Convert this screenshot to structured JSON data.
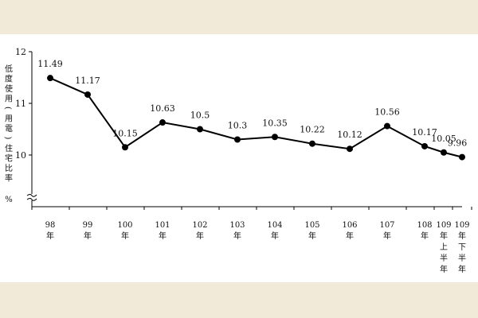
{
  "chart_data": {
    "type": "line",
    "ylabel_chars": [
      "低",
      "度",
      "使",
      "用",
      "(",
      "用",
      "電",
      ")",
      "住",
      "宅",
      "比",
      "率"
    ],
    "yunit": "%",
    "ylim": [
      9,
      12
    ],
    "yticks": [
      10,
      11,
      12
    ],
    "y_axis_break": true,
    "grid": false,
    "legend": "none",
    "categories": [
      [
        "98",
        "年"
      ],
      [
        "99",
        "年"
      ],
      [
        "100",
        "年"
      ],
      [
        "101",
        "年"
      ],
      [
        "102",
        "年"
      ],
      [
        "103",
        "年"
      ],
      [
        "104",
        "年"
      ],
      [
        "105",
        "年"
      ],
      [
        "106",
        "年"
      ],
      [
        "107",
        "年"
      ],
      [
        "108",
        "年"
      ],
      [
        "109",
        "年",
        "上",
        "半",
        "年"
      ],
      [
        "109",
        "年",
        "下",
        "半",
        "年"
      ]
    ],
    "series": [
      {
        "values": [
          11.49,
          11.17,
          10.15,
          10.63,
          10.5,
          10.3,
          10.35,
          10.22,
          10.12,
          10.56,
          10.17,
          10.05,
          9.96
        ],
        "labels": [
          "11.49",
          "11.17",
          "10.15",
          "10.63",
          "10.5",
          "10.3",
          "10.35",
          "10.22",
          "10.12",
          "10.56",
          "10.17",
          "10.05",
          "9.96"
        ],
        "color": "#000000"
      }
    ]
  }
}
